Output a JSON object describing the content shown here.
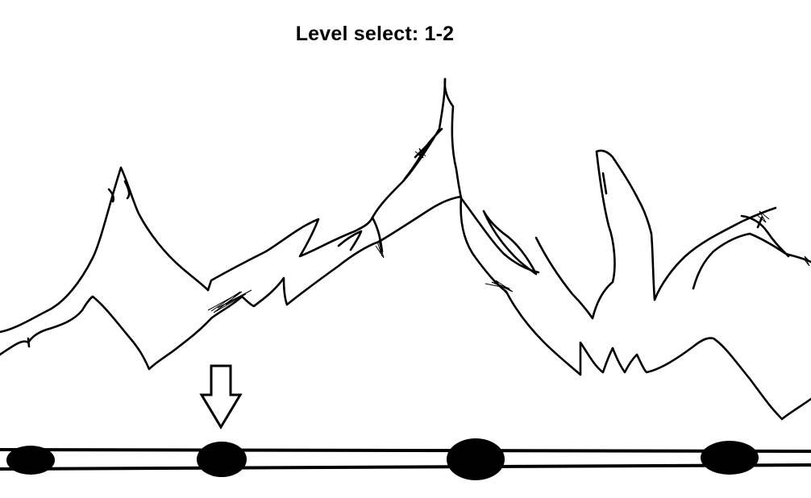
{
  "title": "Level select: 1-2",
  "level_select": {
    "current_level": "1-2",
    "selected_node_index": 1,
    "node_count": 4,
    "nodes": [
      "level-1-1",
      "level-1-2",
      "level-1-3",
      "level-1-4"
    ]
  },
  "icons": {
    "selector": "down-arrow-icon"
  },
  "colors": {
    "ink": "#000000",
    "background": "#ffffff"
  }
}
